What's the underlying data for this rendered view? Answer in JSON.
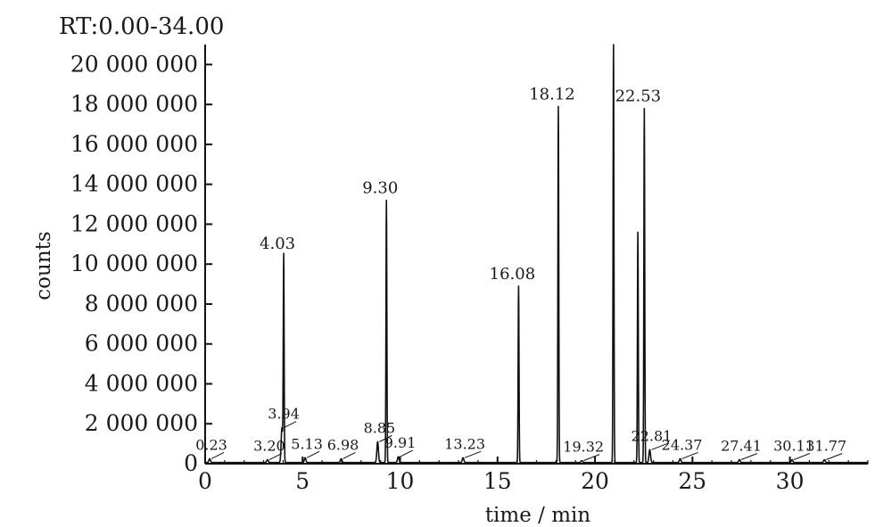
{
  "chart_data": {
    "type": "line",
    "range_label": "RT:0.00-34.00",
    "xlabel": "time / min",
    "ylabel": "counts",
    "xlim": [
      0,
      34
    ],
    "ylim": [
      0,
      21000000
    ],
    "x_ticks": [
      0,
      5,
      10,
      15,
      20,
      25,
      30
    ],
    "y_ticks": [
      0,
      2000000,
      4000000,
      6000000,
      8000000,
      10000000,
      12000000,
      14000000,
      16000000,
      18000000,
      20000000
    ],
    "y_tick_labels": [
      "0",
      "2 000 000",
      "4 000 000",
      "6 000 000",
      "8 000 000",
      "10 000 000",
      "12 000 000",
      "14 000 000",
      "16 000 000",
      "18 000 000",
      "20 000 000"
    ],
    "grid": false,
    "series": [
      {
        "peaks": [
          {
            "x": 0.23,
            "y": 250000,
            "label": "0.23"
          },
          {
            "x": 3.2,
            "y": 200000,
            "label": "3.20"
          },
          {
            "x": 3.94,
            "y": 1800000,
            "label": "3.94"
          },
          {
            "x": 4.03,
            "y": 10400000,
            "label": "4.03"
          },
          {
            "x": 5.13,
            "y": 300000,
            "label": "5.13"
          },
          {
            "x": 6.98,
            "y": 250000,
            "label": "6.98"
          },
          {
            "x": 8.85,
            "y": 1100000,
            "label": "8.85"
          },
          {
            "x": 9.3,
            "y": 13200000,
            "label": "9.30"
          },
          {
            "x": 9.91,
            "y": 350000,
            "label": "9.91"
          },
          {
            "x": 13.23,
            "y": 300000,
            "label": "13.23"
          },
          {
            "x": 16.08,
            "y": 8900000,
            "label": "16.08"
          },
          {
            "x": 18.12,
            "y": 17900000,
            "label": "18.12"
          },
          {
            "x": 19.32,
            "y": 150000,
            "label": "19.32"
          },
          {
            "x": 20.95,
            "y": 21000000,
            "label": ""
          },
          {
            "x": 22.2,
            "y": 11600000,
            "label": ""
          },
          {
            "x": 22.53,
            "y": 17800000,
            "label": "22.53"
          },
          {
            "x": 22.81,
            "y": 700000,
            "label": "22.81"
          },
          {
            "x": 24.37,
            "y": 250000,
            "label": "24.37"
          },
          {
            "x": 27.41,
            "y": 200000,
            "label": "27.41"
          },
          {
            "x": 30.11,
            "y": 200000,
            "label": "30.11"
          },
          {
            "x": 31.77,
            "y": 200000,
            "label": "31.77"
          }
        ]
      }
    ]
  }
}
